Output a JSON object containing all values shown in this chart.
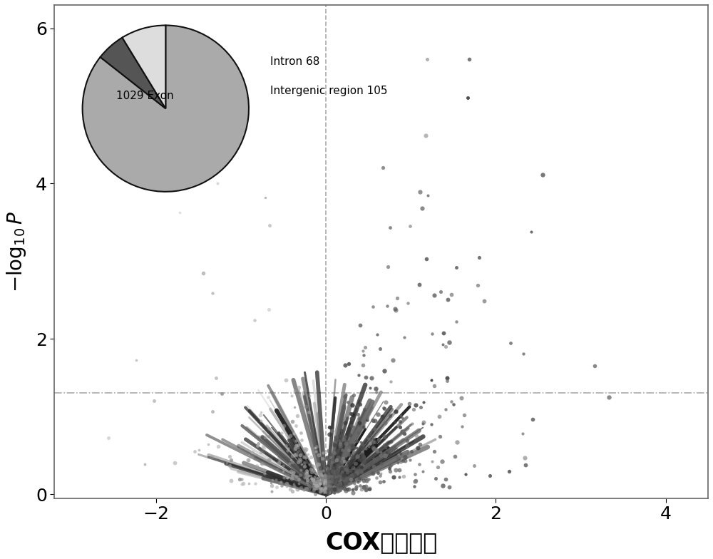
{
  "pie_values": [
    1029,
    68,
    105
  ],
  "pie_labels": [
    "1029 Exon",
    "Intron 68",
    "Intergenic region 105"
  ],
  "pie_colors": [
    "#aaaaaa",
    "#555555",
    "#dddddd"
  ],
  "pie_edge_color": "#111111",
  "xlim": [
    -3.2,
    4.5
  ],
  "ylim": [
    -0.05,
    6.3
  ],
  "xticks": [
    -2,
    0,
    2,
    4
  ],
  "yticks": [
    0,
    2,
    4,
    6
  ],
  "xlabel": "COX回归系数",
  "hline_y": 1.3,
  "hline_color": "#aaaaaa",
  "vline_color": "#aaaaaa",
  "background_color": "#ffffff",
  "seed": 42
}
